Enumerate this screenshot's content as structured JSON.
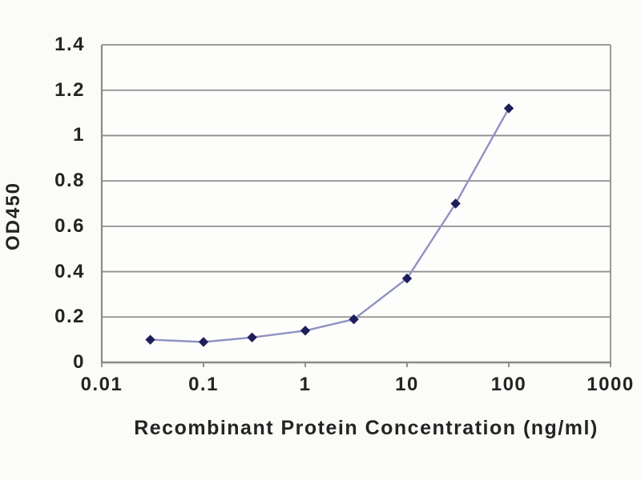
{
  "chart_data": {
    "type": "line",
    "title": "",
    "xlabel": "Recombinant Protein Concentration (ng/ml)",
    "ylabel": "OD450",
    "x_scale": "log",
    "xlim": [
      0.01,
      1000
    ],
    "ylim": [
      0,
      1.4
    ],
    "x_tick_labels": [
      "0.01",
      "0.1",
      "1",
      "10",
      "100",
      "1000"
    ],
    "x_tick_values": [
      0.01,
      0.1,
      1,
      10,
      100,
      1000
    ],
    "y_tick_labels": [
      "0",
      "0.2",
      "0.4",
      "0.6",
      "0.8",
      "1",
      "1.2",
      "1.4"
    ],
    "y_tick_values": [
      0,
      0.2,
      0.4,
      0.6,
      0.8,
      1,
      1.2,
      1.4
    ],
    "grid": "horizontal",
    "legend": "none",
    "series": [
      {
        "marker": "diamond",
        "x": [
          0.03,
          0.1,
          0.3,
          1,
          3,
          10,
          30,
          100
        ],
        "y": [
          0.1,
          0.09,
          0.11,
          0.14,
          0.19,
          0.37,
          0.7,
          1.12
        ]
      }
    ],
    "colors": {
      "marker": "#1e1e5a",
      "line": "#8f92c2",
      "grid": "#8f8f8f",
      "axis": "#8a8a8a",
      "text": "#242424",
      "background": "#fbfbf8",
      "plot_background": "#fdfdfc"
    }
  }
}
